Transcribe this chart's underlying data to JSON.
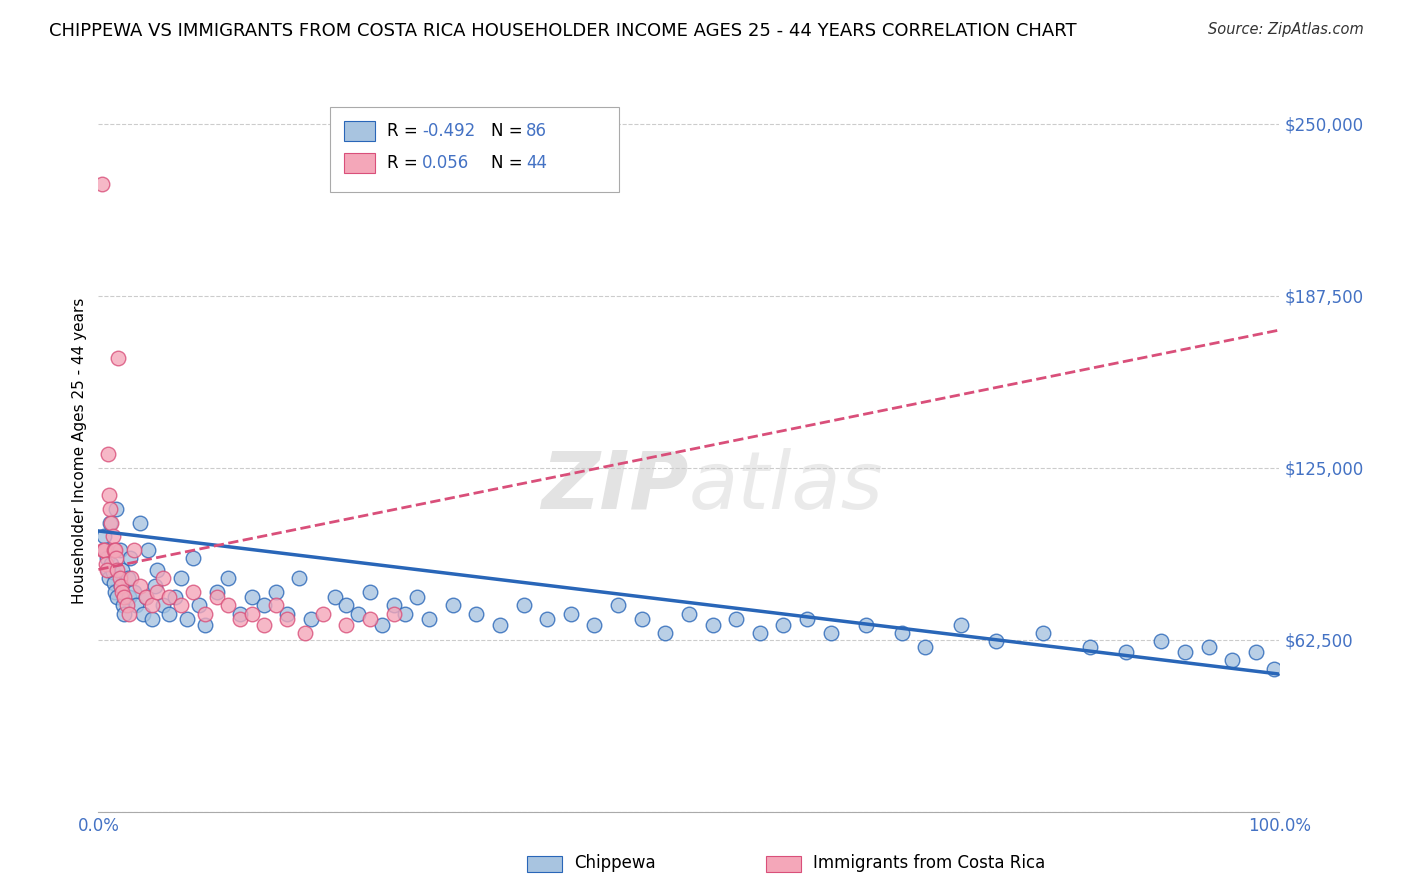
{
  "title": "CHIPPEWA VS IMMIGRANTS FROM COSTA RICA HOUSEHOLDER INCOME AGES 25 - 44 YEARS CORRELATION CHART",
  "source": "Source: ZipAtlas.com",
  "ylabel": "Householder Income Ages 25 - 44 years",
  "xlim": [
    0,
    1.0
  ],
  "ylim": [
    0,
    262500
  ],
  "yticks": [
    0,
    62500,
    125000,
    187500,
    250000
  ],
  "ytick_labels": [
    "",
    "$62,500",
    "$125,000",
    "$187,500",
    "$250,000"
  ],
  "chippewa_R": -0.492,
  "chippewa_N": 86,
  "costa_rica_R": 0.056,
  "costa_rica_N": 44,
  "chippewa_color": "#a8c4e0",
  "chippewa_line_color": "#2966b8",
  "costa_rica_color": "#f4a7b9",
  "costa_rica_line_color": "#d94f7a",
  "background_color": "#ffffff",
  "watermark": "ZIPatlas",
  "title_fontsize": 13,
  "label_color": "#4472c4",
  "chippewa_x": [
    0.005,
    0.006,
    0.007,
    0.008,
    0.009,
    0.01,
    0.011,
    0.012,
    0.013,
    0.014,
    0.015,
    0.016,
    0.018,
    0.019,
    0.02,
    0.021,
    0.022,
    0.025,
    0.026,
    0.027,
    0.03,
    0.032,
    0.035,
    0.038,
    0.04,
    0.042,
    0.045,
    0.048,
    0.05,
    0.055,
    0.06,
    0.065,
    0.07,
    0.075,
    0.08,
    0.085,
    0.09,
    0.1,
    0.11,
    0.12,
    0.13,
    0.14,
    0.15,
    0.16,
    0.17,
    0.18,
    0.2,
    0.21,
    0.22,
    0.23,
    0.24,
    0.25,
    0.26,
    0.27,
    0.28,
    0.3,
    0.32,
    0.34,
    0.36,
    0.38,
    0.4,
    0.42,
    0.44,
    0.46,
    0.48,
    0.5,
    0.52,
    0.54,
    0.56,
    0.58,
    0.6,
    0.62,
    0.65,
    0.68,
    0.7,
    0.73,
    0.76,
    0.8,
    0.84,
    0.87,
    0.9,
    0.92,
    0.94,
    0.96,
    0.98,
    0.995
  ],
  "chippewa_y": [
    100000,
    95000,
    92000,
    88000,
    85000,
    105000,
    90000,
    87000,
    83000,
    80000,
    110000,
    78000,
    95000,
    82000,
    88000,
    75000,
    72000,
    85000,
    78000,
    92000,
    80000,
    75000,
    105000,
    72000,
    78000,
    95000,
    70000,
    82000,
    88000,
    75000,
    72000,
    78000,
    85000,
    70000,
    92000,
    75000,
    68000,
    80000,
    85000,
    72000,
    78000,
    75000,
    80000,
    72000,
    85000,
    70000,
    78000,
    75000,
    72000,
    80000,
    68000,
    75000,
    72000,
    78000,
    70000,
    75000,
    72000,
    68000,
    75000,
    70000,
    72000,
    68000,
    75000,
    70000,
    65000,
    72000,
    68000,
    70000,
    65000,
    68000,
    70000,
    65000,
    68000,
    65000,
    60000,
    68000,
    62000,
    65000,
    60000,
    58000,
    62000,
    58000,
    60000,
    55000,
    58000,
    52000
  ],
  "costa_rica_x": [
    0.003,
    0.004,
    0.005,
    0.006,
    0.007,
    0.008,
    0.009,
    0.01,
    0.011,
    0.012,
    0.013,
    0.014,
    0.015,
    0.016,
    0.017,
    0.018,
    0.019,
    0.02,
    0.022,
    0.024,
    0.026,
    0.028,
    0.03,
    0.035,
    0.04,
    0.045,
    0.05,
    0.055,
    0.06,
    0.07,
    0.08,
    0.09,
    0.1,
    0.11,
    0.12,
    0.13,
    0.14,
    0.15,
    0.16,
    0.175,
    0.19,
    0.21,
    0.23,
    0.25
  ],
  "costa_rica_y": [
    228000,
    95000,
    95000,
    90000,
    88000,
    130000,
    115000,
    110000,
    105000,
    100000,
    95000,
    95000,
    92000,
    88000,
    165000,
    85000,
    82000,
    80000,
    78000,
    75000,
    72000,
    85000,
    95000,
    82000,
    78000,
    75000,
    80000,
    85000,
    78000,
    75000,
    80000,
    72000,
    78000,
    75000,
    70000,
    72000,
    68000,
    75000,
    70000,
    65000,
    72000,
    68000,
    70000,
    72000
  ],
  "chippewa_trend_x": [
    0.0,
    1.0
  ],
  "chippewa_trend_y": [
    102000,
    50000
  ],
  "costa_rica_trend_x": [
    0.0,
    1.0
  ],
  "costa_rica_trend_y": [
    88000,
    175000
  ]
}
